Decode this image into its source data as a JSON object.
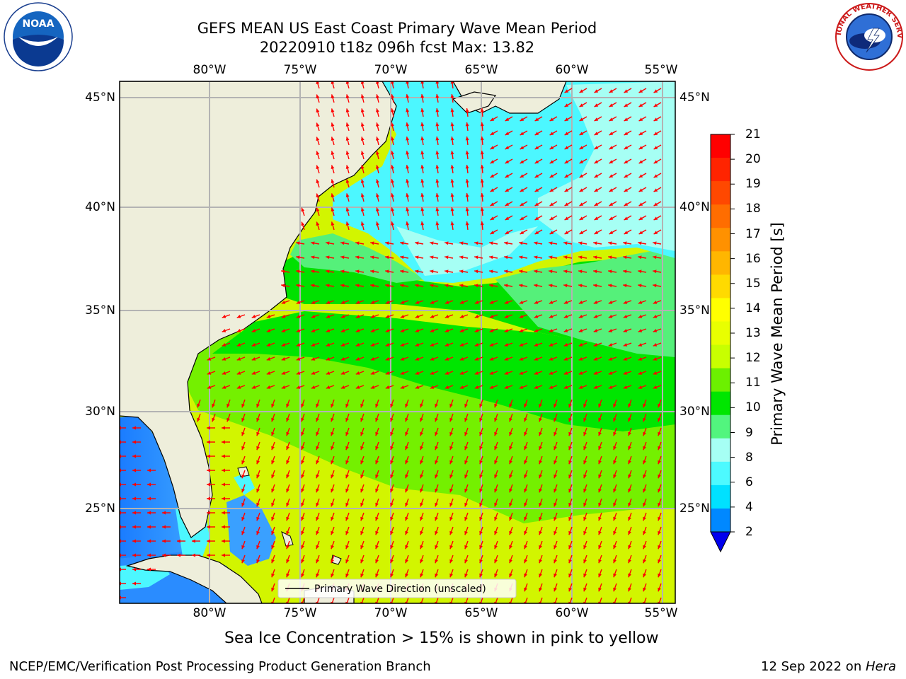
{
  "header": {
    "title_line1": "GEFS MEAN US East Coast Primary Wave Mean Period",
    "title_line2": "20220910 t18z 096h fcst   Max: 13.82"
  },
  "logos": {
    "noaa_text": "NOAA",
    "nws_ring_text": "NATIONAL WEATHER SERVICE"
  },
  "map": {
    "lon_labels": [
      "80°W",
      "75°W",
      "70°W",
      "65°W",
      "60°W",
      "55°W"
    ],
    "lat_labels": [
      "45°N",
      "40°N",
      "35°N",
      "30°N",
      "25°N"
    ],
    "legend_label": "Primary Wave Direction (unscaled)"
  },
  "colorbar": {
    "label": "Primary Wave Mean Period [s]",
    "ticks": [
      "21",
      "20",
      "19",
      "18",
      "17",
      "16",
      "15",
      "14",
      "13",
      "12",
      "11",
      "10",
      "9",
      "8",
      "6",
      "4",
      "2"
    ],
    "colors": [
      "#ff0000",
      "#ff2400",
      "#ff4800",
      "#ff6d00",
      "#ff9100",
      "#ffb600",
      "#ffda00",
      "#ffff00",
      "#e9ff00",
      "#c8ff00",
      "#6cf000",
      "#00e600",
      "#52f57e",
      "#a6fff4",
      "#4dfaff",
      "#00e1ff",
      "#0088ff"
    ],
    "under_color": "#0000ee"
  },
  "notes": {
    "sea_ice": "Sea Ice Concentration > 15% is shown in pink to yellow"
  },
  "footer": {
    "left": "NCEP/EMC/Verification Post Processing Product Generation Branch",
    "right_prefix": "12 Sep 2022 on ",
    "right_machine": "Hera"
  }
}
